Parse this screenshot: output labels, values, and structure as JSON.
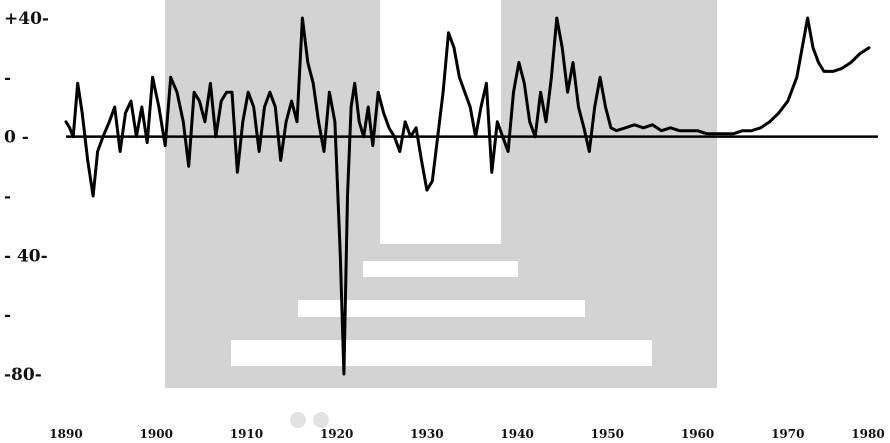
{
  "chart_data": {
    "type": "line",
    "title": "",
    "xlabel": "",
    "ylabel": "",
    "xlim": [
      1890,
      1980
    ],
    "ylim": [
      -80,
      40
    ],
    "grid": false,
    "legend": "none",
    "y_ticks": [
      {
        "value": 40,
        "label": "+40-"
      },
      {
        "value": 20,
        "label": "-"
      },
      {
        "value": 0,
        "label": "0 -"
      },
      {
        "value": -20,
        "label": "-"
      },
      {
        "value": -40,
        "label": "- 40-"
      },
      {
        "value": -60,
        "label": "-"
      },
      {
        "value": -80,
        "label": "-80-"
      }
    ],
    "x_ticks": [
      {
        "value": 1890,
        "label": "1890"
      },
      {
        "value": 1900,
        "label": "1900"
      },
      {
        "value": 1910,
        "label": "1910"
      },
      {
        "value": 1920,
        "label": "1920"
      },
      {
        "value": 1930,
        "label": "1930"
      },
      {
        "value": 1940,
        "label": "1940"
      },
      {
        "value": 1950,
        "label": "1950"
      },
      {
        "value": 1960,
        "label": "1960"
      },
      {
        "value": 1970,
        "label": "1970"
      },
      {
        "value": 1980,
        "label": "1980"
      }
    ],
    "baseline": 0,
    "series": [
      {
        "color": "#000000",
        "x": [
          1890.0,
          1890.4,
          1890.8,
          1891.3,
          1891.8,
          1892.4,
          1893.0,
          1893.5,
          1894.1,
          1894.8,
          1895.4,
          1896.0,
          1896.6,
          1897.2,
          1897.8,
          1898.4,
          1899.0,
          1899.6,
          1900.3,
          1901.0,
          1901.6,
          1902.3,
          1903.0,
          1903.6,
          1904.2,
          1904.8,
          1905.4,
          1906.0,
          1906.6,
          1907.2,
          1907.8,
          1908.4,
          1909.0,
          1909.6,
          1910.2,
          1910.8,
          1911.4,
          1912.0,
          1912.6,
          1913.2,
          1913.8,
          1914.4,
          1915.0,
          1915.6,
          1916.2,
          1916.8,
          1917.4,
          1918.0,
          1918.6,
          1919.2,
          1919.8,
          1920.4,
          1920.8,
          1921.2,
          1921.6,
          1922.0,
          1922.5,
          1923.0,
          1923.5,
          1924.0,
          1924.6,
          1925.2,
          1925.8,
          1926.4,
          1927.0,
          1927.6,
          1928.2,
          1928.8,
          1929.4,
          1930.0,
          1930.6,
          1931.2,
          1931.8,
          1932.4,
          1933.0,
          1933.6,
          1934.2,
          1934.8,
          1935.4,
          1936.0,
          1936.6,
          1937.2,
          1937.8,
          1938.4,
          1939.0,
          1939.6,
          1940.2,
          1940.8,
          1941.4,
          1942.0,
          1942.6,
          1943.2,
          1943.8,
          1944.4,
          1945.0,
          1945.6,
          1946.2,
          1946.8,
          1947.4,
          1948.0,
          1948.6,
          1949.2,
          1949.8,
          1950.4,
          1951.0,
          1952.0,
          1953.0,
          1954.0,
          1955.0,
          1956.0,
          1957.0,
          1958.0,
          1959.0,
          1960.0,
          1961.0,
          1962.0,
          1963.0,
          1964.0,
          1965.0,
          1966.0,
          1967.0,
          1968.0,
          1969.0,
          1970.0,
          1971.0,
          1971.6,
          1972.2,
          1972.8,
          1973.4,
          1974.0,
          1975.0,
          1976.0,
          1977.0,
          1978.0,
          1979.0
        ],
        "y": [
          5,
          3,
          0,
          18,
          8,
          -8,
          -20,
          -5,
          0,
          5,
          10,
          -5,
          8,
          12,
          0,
          10,
          -2,
          20,
          10,
          -3,
          20,
          15,
          5,
          -10,
          15,
          12,
          5,
          18,
          0,
          12,
          15,
          15,
          -12,
          5,
          15,
          10,
          -5,
          10,
          15,
          10,
          -8,
          5,
          12,
          5,
          40,
          25,
          18,
          5,
          -5,
          15,
          5,
          -40,
          -80,
          -20,
          10,
          18,
          5,
          0,
          10,
          -3,
          15,
          8,
          3,
          0,
          -5,
          5,
          0,
          3,
          -8,
          -18,
          -15,
          0,
          15,
          35,
          30,
          20,
          15,
          10,
          0,
          10,
          18,
          -12,
          5,
          0,
          -5,
          15,
          25,
          18,
          5,
          0,
          15,
          5,
          20,
          40,
          30,
          15,
          25,
          10,
          3,
          -5,
          10,
          20,
          10,
          3,
          2,
          3,
          4,
          3,
          4,
          2,
          3,
          2,
          2,
          2,
          1,
          1,
          1,
          1,
          2,
          2,
          3,
          5,
          8,
          12,
          20,
          30,
          40,
          30,
          25,
          22,
          22,
          23,
          25,
          28,
          30
        ]
      }
    ]
  }
}
